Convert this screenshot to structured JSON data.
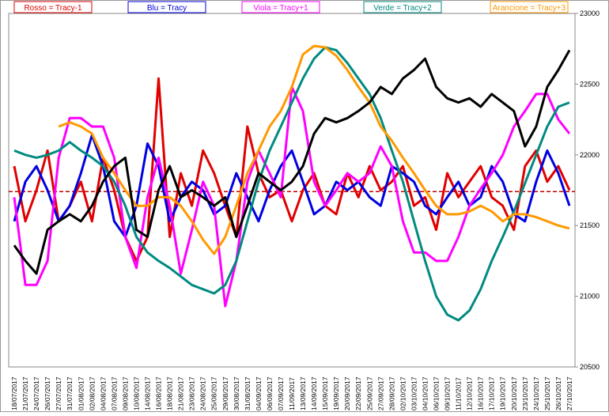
{
  "chart_data": {
    "type": "line",
    "categories": [
      "18/07/2017",
      "21/07/2017",
      "24/07/2017",
      "26/07/2017",
      "27/07/2017",
      "31/07/2017",
      "01/08/2017",
      "02/08/2017",
      "04/08/2017",
      "07/08/2017",
      "09/08/2017",
      "10/08/2017",
      "14/08/2017",
      "16/08/2017",
      "18/08/2017",
      "21/08/2017",
      "23/08/2017",
      "24/08/2017",
      "25/08/2017",
      "29/08/2017",
      "30/08/2017",
      "31/08/2017",
      "04/09/2017",
      "06/09/2017",
      "07/09/2017",
      "11/09/2017",
      "13/09/2017",
      "14/09/2017",
      "15/09/2017",
      "19/09/2017",
      "20/09/2017",
      "22/09/2017",
      "25/09/2017",
      "27/09/2017",
      "28/09/2017",
      "02/10/2017",
      "03/10/2017",
      "04/10/2017",
      "06/10/2017",
      "09/10/2017",
      "11/10/2017",
      "12/10/2017",
      "16/10/2017",
      "17/10/2017",
      "19/10/2017",
      "20/10/2017",
      "23/10/2017",
      "24/10/2017",
      "25/10/2017",
      "26/10/2017",
      "27/10/2017"
    ],
    "series": [
      {
        "name": "Rosso = Tracy-1",
        "color": "#e00000",
        "values": [
          21920,
          21530,
          21750,
          22030,
          21530,
          21640,
          21810,
          21530,
          21980,
          21750,
          21420,
          21250,
          21420,
          22540,
          21420,
          21870,
          21640,
          22030,
          21870,
          21640,
          21420,
          22200,
          21870,
          21700,
          21750,
          21530,
          21750,
          21870,
          21640,
          21580,
          21870,
          21700,
          21920,
          21750,
          21810,
          21920,
          21640,
          21700,
          21470,
          21870,
          21700,
          21810,
          21920,
          21700,
          21640,
          21470,
          21920,
          22030,
          21810,
          21920,
          21750
        ]
      },
      {
        "name": "Blu = Tracy",
        "color": "#0000e0",
        "values": [
          21530,
          21810,
          21920,
          21750,
          21530,
          21640,
          21870,
          22140,
          21920,
          21530,
          21420,
          21640,
          22080,
          21920,
          21530,
          21700,
          21810,
          21750,
          21580,
          21640,
          21870,
          21700,
          21530,
          21750,
          21920,
          22030,
          21810,
          21580,
          21640,
          21810,
          21750,
          21810,
          21700,
          21640,
          21920,
          21870,
          21810,
          21640,
          21580,
          21700,
          21810,
          21640,
          21700,
          21920,
          21810,
          21580,
          21530,
          21810,
          22030,
          21870,
          21640
        ]
      },
      {
        "name": "Viola = Tracy+1",
        "color": "#ff00ff",
        "values": [
          21700,
          21080,
          21080,
          21250,
          21980,
          22260,
          22260,
          22200,
          22200,
          21980,
          21420,
          21200,
          21700,
          21980,
          21640,
          21160,
          21470,
          21810,
          21640,
          20930,
          21250,
          21810,
          22030,
          21870,
          21700,
          22480,
          22310,
          21810,
          21640,
          21750,
          21870,
          21810,
          21870,
          22060,
          21920,
          21530,
          21310,
          21310,
          21250,
          21250,
          21420,
          21640,
          21760,
          21870,
          22000,
          22200,
          22310,
          22430,
          22430,
          22250,
          22150
        ]
      },
      {
        "name": "Verde = Tracy+2",
        "color": "#008a80",
        "values": [
          22030,
          22000,
          21980,
          22000,
          22030,
          22090,
          22030,
          21980,
          21920,
          21810,
          21640,
          21420,
          21310,
          21250,
          21200,
          21140,
          21080,
          21050,
          21020,
          21080,
          21250,
          21530,
          21810,
          22030,
          22200,
          22370,
          22540,
          22680,
          22760,
          22740,
          22650,
          22540,
          22430,
          22260,
          22030,
          21810,
          21530,
          21250,
          21000,
          20870,
          20830,
          20900,
          21050,
          21250,
          21420,
          21600,
          21800,
          22000,
          22200,
          22340,
          22370
        ]
      },
      {
        "name": "Arancione = Tracy+3",
        "color": "#ff9900",
        "values": [
          null,
          null,
          null,
          null,
          22200,
          22230,
          22200,
          22150,
          21980,
          21870,
          21750,
          21640,
          21640,
          21700,
          21700,
          21640,
          21530,
          21400,
          21300,
          21420,
          21640,
          21870,
          22030,
          22200,
          22310,
          22480,
          22710,
          22770,
          22760,
          22700,
          22600,
          22480,
          22370,
          22200,
          22100,
          21980,
          21870,
          21750,
          21640,
          21580,
          21580,
          21600,
          21640,
          21600,
          21530,
          21580,
          21580,
          21560,
          21530,
          21500,
          21480
        ]
      },
      {
        "color": "#000000",
        "values": [
          21360,
          21250,
          21160,
          21470,
          21530,
          21580,
          21530,
          21640,
          21810,
          21920,
          21980,
          21470,
          21420,
          21750,
          21920,
          21700,
          21750,
          21700,
          21640,
          21700,
          21420,
          21640,
          21870,
          21810,
          21750,
          21810,
          21920,
          22150,
          22260,
          22230,
          22260,
          22310,
          22370,
          22480,
          22430,
          22540,
          22600,
          22680,
          22480,
          22400,
          22370,
          22400,
          22340,
          22430,
          22370,
          22310,
          22060,
          22200,
          22480,
          22600,
          22740
        ]
      }
    ],
    "reference_line": {
      "value": 21740,
      "color": "#c00000"
    },
    "ylim": [
      20500,
      23000
    ],
    "yticks": [
      20500,
      21000,
      21500,
      22000,
      22500,
      23000
    ],
    "grid": false
  }
}
